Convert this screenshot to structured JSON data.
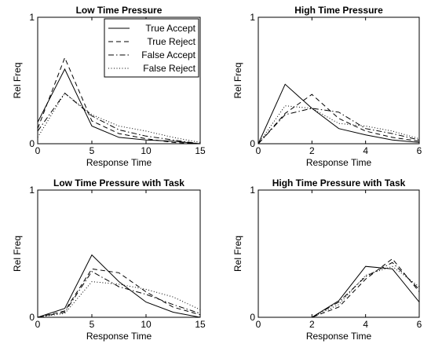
{
  "chart_data": [
    {
      "type": "line",
      "title": "Low Time Pressure",
      "xlabel": "Response Time",
      "ylabel": "Rel Freq",
      "xlim": [
        0,
        15
      ],
      "ylim": [
        0,
        1
      ],
      "xticks": [
        "0",
        "5",
        "10",
        "15"
      ],
      "yticks": [
        "0",
        "1"
      ],
      "x": [
        0,
        2.5,
        5,
        7.5,
        10,
        12.5,
        15
      ],
      "legend": "top-right",
      "series": [
        {
          "name": "True Accept",
          "style": "solid",
          "values": [
            0.17,
            0.59,
            0.14,
            0.05,
            0.03,
            0.02,
            0.0
          ]
        },
        {
          "name": "True Reject",
          "style": "dashed",
          "values": [
            0.12,
            0.68,
            0.18,
            0.08,
            0.04,
            0.01,
            0.0
          ]
        },
        {
          "name": "False Accept",
          "style": "dashdot",
          "values": [
            0.1,
            0.4,
            0.22,
            0.11,
            0.06,
            0.03,
            0.0
          ]
        },
        {
          "name": "False Reject",
          "style": "dotted",
          "values": [
            0.05,
            0.4,
            0.23,
            0.14,
            0.1,
            0.05,
            0.01
          ]
        }
      ]
    },
    {
      "type": "line",
      "title": "High Time Pressure",
      "xlabel": "Response Time",
      "ylabel": "Rel Freq",
      "xlim": [
        0,
        6
      ],
      "ylim": [
        0,
        1
      ],
      "xticks": [
        "0",
        "2",
        "4",
        "6"
      ],
      "yticks": [
        "0",
        "1"
      ],
      "x": [
        0,
        1,
        2,
        3,
        4,
        5,
        6
      ],
      "series": [
        {
          "name": "True Accept",
          "style": "solid",
          "values": [
            0.0,
            0.47,
            0.28,
            0.12,
            0.07,
            0.03,
            0.01
          ]
        },
        {
          "name": "True Reject",
          "style": "dashed",
          "values": [
            0.0,
            0.24,
            0.39,
            0.2,
            0.1,
            0.05,
            0.02
          ]
        },
        {
          "name": "False Accept",
          "style": "dashdot",
          "values": [
            0.0,
            0.23,
            0.28,
            0.25,
            0.12,
            0.08,
            0.03
          ]
        },
        {
          "name": "False Reject",
          "style": "dotted",
          "values": [
            0.0,
            0.3,
            0.28,
            0.16,
            0.14,
            0.1,
            0.04
          ]
        }
      ]
    },
    {
      "type": "line",
      "title": "Low Time Pressure with Task",
      "xlabel": "Response Time",
      "ylabel": "Rel Freq",
      "xlim": [
        0,
        15
      ],
      "ylim": [
        0,
        1
      ],
      "xticks": [
        "0",
        "5",
        "10",
        "15"
      ],
      "yticks": [
        "0",
        "1"
      ],
      "x": [
        0,
        2.5,
        5,
        7.5,
        10,
        12.5,
        15
      ],
      "series": [
        {
          "name": "True Accept",
          "style": "solid",
          "values": [
            0.0,
            0.07,
            0.49,
            0.28,
            0.12,
            0.04,
            0.0
          ]
        },
        {
          "name": "True Reject",
          "style": "dashed",
          "values": [
            0.0,
            0.05,
            0.38,
            0.35,
            0.2,
            0.08,
            0.02
          ]
        },
        {
          "name": "False Accept",
          "style": "dashdot",
          "values": [
            0.0,
            0.04,
            0.36,
            0.24,
            0.18,
            0.1,
            0.03
          ]
        },
        {
          "name": "False Reject",
          "style": "dotted",
          "values": [
            0.0,
            0.03,
            0.28,
            0.26,
            0.22,
            0.16,
            0.06
          ]
        }
      ]
    },
    {
      "type": "line",
      "title": "High Time Pressure with Task",
      "xlabel": "Response Time",
      "ylabel": "Rel Freq",
      "xlim": [
        0,
        6
      ],
      "ylim": [
        0,
        1
      ],
      "xticks": [
        "0",
        "2",
        "4",
        "6"
      ],
      "yticks": [
        "0",
        "1"
      ],
      "x": [
        0,
        1,
        2,
        3,
        4,
        5,
        6
      ],
      "series": [
        {
          "name": "True Accept",
          "style": "solid",
          "values": [
            0.0,
            0.0,
            0.0,
            0.13,
            0.4,
            0.38,
            0.12
          ]
        },
        {
          "name": "True Reject",
          "style": "dashed",
          "values": [
            0.0,
            0.0,
            0.0,
            0.08,
            0.3,
            0.46,
            0.2
          ]
        },
        {
          "name": "False Accept",
          "style": "dashdot",
          "values": [
            0.0,
            0.0,
            0.0,
            0.12,
            0.32,
            0.43,
            0.22
          ]
        },
        {
          "name": "False Reject",
          "style": "dotted",
          "values": [
            0.0,
            0.0,
            0.0,
            0.1,
            0.33,
            0.4,
            0.24
          ]
        }
      ]
    }
  ]
}
